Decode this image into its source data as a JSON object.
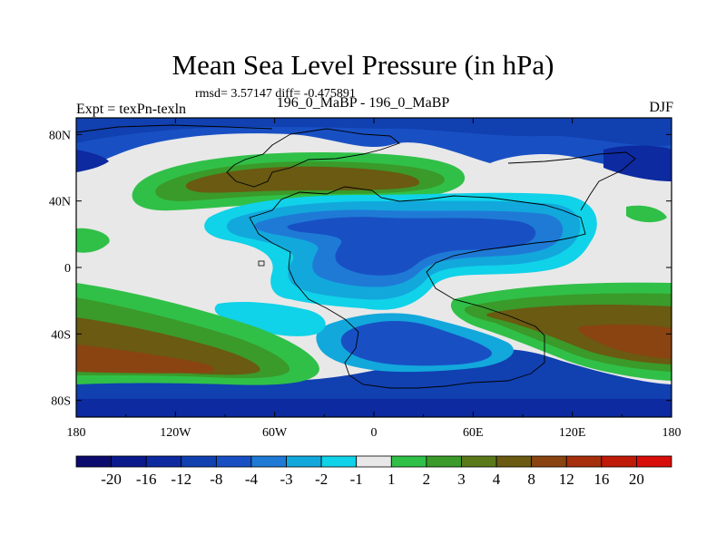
{
  "title": "Mean Sea Level Pressure (in hPa)",
  "stats": "rmsd= 3.57147 diff= -0.475891",
  "left_label": "Expt = texPn-texln",
  "center_label": "196_0_MaBP - 196_0_MaBP",
  "right_label": "DJF",
  "lat_ticks": [
    "80N",
    "40N",
    "0",
    "40S",
    "80S"
  ],
  "lon_ticks": [
    "180",
    "120W",
    "60W",
    "0",
    "60E",
    "120E",
    "180"
  ],
  "colorbar": {
    "labels": [
      "-20",
      "-16",
      "-12",
      "-8",
      "-4",
      "-3",
      "-2",
      "-1",
      "1",
      "2",
      "3",
      "4",
      "8",
      "12",
      "16",
      "20"
    ],
    "colors": [
      "#0c0c6e",
      "#0a1a8c",
      "#0d2aa0",
      "#1140b0",
      "#1850c4",
      "#1f7ad6",
      "#12a8dc",
      "#10d2e8",
      "#e8e8e8",
      "#30c048",
      "#3a9a2a",
      "#5a7a1a",
      "#6a5a12",
      "#8a4412",
      "#a6300c",
      "#c01a08",
      "#d80e0a"
    ]
  },
  "colors": {
    "ocean_neutral": "#e8e8e8",
    "coast": "#000000"
  }
}
